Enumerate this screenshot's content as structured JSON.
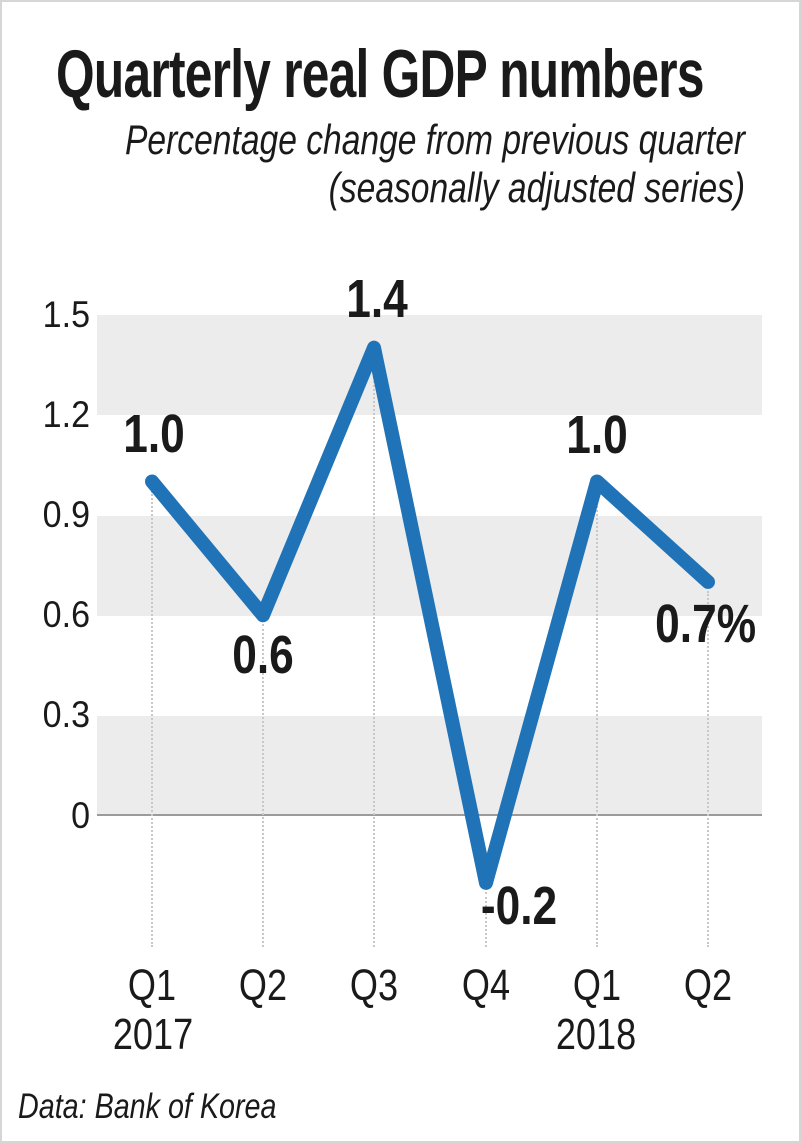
{
  "header": {
    "title": "Quarterly real GDP numbers",
    "subtitle_line1": "Percentage change from previous quarter",
    "subtitle_line2": "(seasonally adjusted series)"
  },
  "footer": {
    "source": "Data: Bank of Korea"
  },
  "chart_data": {
    "type": "line",
    "title": "Quarterly real GDP numbers",
    "subtitle": "Percentage change from previous quarter (seasonally adjusted series)",
    "categories": [
      "Q1 2017",
      "Q2 2017",
      "Q3 2017",
      "Q4 2017",
      "Q1 2018",
      "Q2 2018"
    ],
    "x_tick_labels": [
      "Q1",
      "Q2",
      "Q3",
      "Q4",
      "Q1",
      "Q2"
    ],
    "year_labels": [
      {
        "text": "2017",
        "under_index": 0
      },
      {
        "text": "2018",
        "under_index": 4
      }
    ],
    "values": [
      1.0,
      0.6,
      1.4,
      -0.2,
      1.0,
      0.7
    ],
    "point_labels": [
      "1.0",
      "0.6",
      "1.4",
      "-0.2",
      "1.0",
      "0.7%"
    ],
    "y_ticks": [
      "1.5",
      "1.2",
      "0.9",
      "0.6",
      "0.3",
      "0"
    ],
    "y_tick_values": [
      1.5,
      1.2,
      0.9,
      0.6,
      0.3,
      0
    ],
    "ylim": [
      -0.38,
      1.5
    ],
    "xlabel": "",
    "ylabel": "",
    "legend": "none",
    "grid": "alternating horizontal shaded bands, dotted vertical drop lines from points",
    "line_color": "#2173b8",
    "band_color": "#ececec",
    "zero_line_color": "#9b9b9b",
    "text_color": "#1a1a1a",
    "source": "Data: Bank of Korea"
  }
}
